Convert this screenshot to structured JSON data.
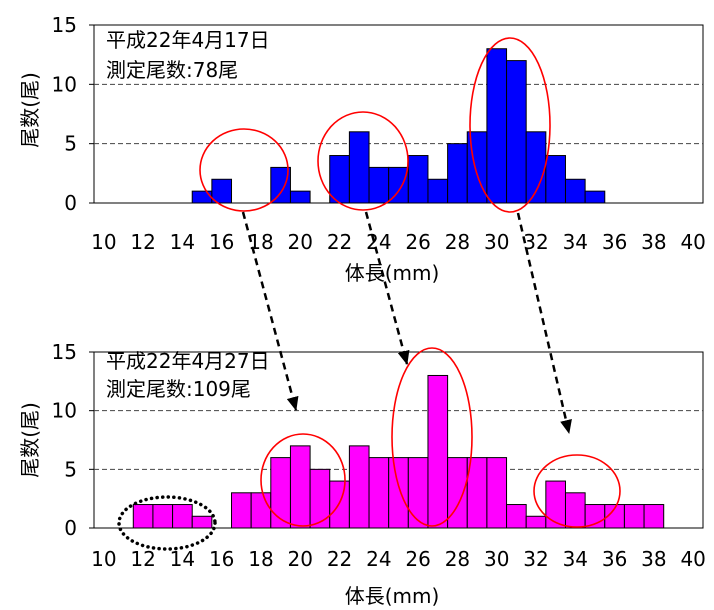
{
  "chart_data": [
    {
      "type": "bar",
      "textbox": [
        "平成22年4月17日",
        "測定尾数:78尾"
      ],
      "xlabel": "体長(mm)",
      "ylabel": "尾数(尾)",
      "categories": [
        10,
        11,
        12,
        13,
        14,
        15,
        16,
        17,
        18,
        19,
        20,
        21,
        22,
        23,
        24,
        25,
        26,
        27,
        28,
        29,
        30,
        31,
        32,
        33,
        34,
        35,
        36,
        37,
        38,
        39,
        40
      ],
      "values": [
        0,
        0,
        0,
        0,
        0,
        1,
        2,
        0,
        0,
        3,
        1,
        0,
        4,
        6,
        3,
        3,
        4,
        2,
        5,
        6,
        13,
        12,
        6,
        4,
        2,
        1,
        0,
        0,
        0,
        0,
        0
      ],
      "xticks": [
        10,
        12,
        14,
        16,
        18,
        20,
        22,
        24,
        26,
        28,
        30,
        32,
        34,
        36,
        38,
        40
      ],
      "yticks": [
        0,
        5,
        10,
        15
      ],
      "ylim": [
        0,
        15
      ],
      "grid": true,
      "bar_color": "#0000FF"
    },
    {
      "type": "bar",
      "textbox": [
        "平成22年4月27日",
        "測定尾数:109尾"
      ],
      "xlabel": "体長(mm)",
      "ylabel": "尾数(尾)",
      "categories": [
        10,
        11,
        12,
        13,
        14,
        15,
        16,
        17,
        18,
        19,
        20,
        21,
        22,
        23,
        24,
        25,
        26,
        27,
        28,
        29,
        30,
        31,
        32,
        33,
        34,
        35,
        36,
        37,
        38,
        39,
        40
      ],
      "values": [
        0,
        0,
        2,
        2,
        2,
        1,
        0,
        3,
        3,
        6,
        7,
        5,
        4,
        7,
        6,
        6,
        6,
        13,
        6,
        6,
        6,
        2,
        1,
        4,
        3,
        2,
        2,
        2,
        2,
        0,
        0
      ],
      "xticks": [
        10,
        12,
        14,
        16,
        18,
        20,
        22,
        24,
        26,
        28,
        30,
        32,
        34,
        36,
        38,
        40
      ],
      "yticks": [
        0,
        5,
        10,
        15
      ],
      "ylim": [
        0,
        15
      ],
      "grid": true,
      "bar_color": "#FF00FF"
    }
  ],
  "annotation_colors": {
    "circle": "#FF0000",
    "dotted_circle": "#000000",
    "arrow": "#000000"
  }
}
